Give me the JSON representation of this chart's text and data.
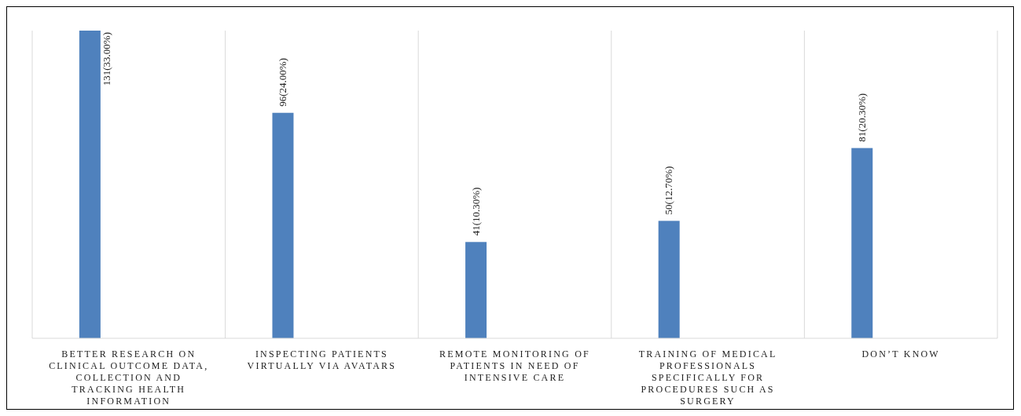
{
  "chart_data": {
    "type": "bar",
    "categories": [
      "BETTER RESEARCH ON CLINICAL OUTCOME DATA, COLLECTION AND TRACKING HEALTH INFORMATION",
      "INSPECTING PATIENTS VIRTUALLY VIA AVATARS",
      "REMOTE MONITORING OF PATIENTS IN NEED OF INTENSIVE CARE",
      "TRAINING OF MEDICAL PROFESSIONALS SPECIFICALLY FOR PROCEDURES SUCH AS SURGERY",
      "DON’T KNOW"
    ],
    "values": [
      131,
      96,
      41,
      50,
      81
    ],
    "value_labels": [
      "131(33.00%)",
      "96(24.00%)",
      "41(10.30%)",
      "50(12.70%)",
      "81(20.30%)"
    ],
    "color": "#4f81bd",
    "grid": "x",
    "legend": false
  }
}
